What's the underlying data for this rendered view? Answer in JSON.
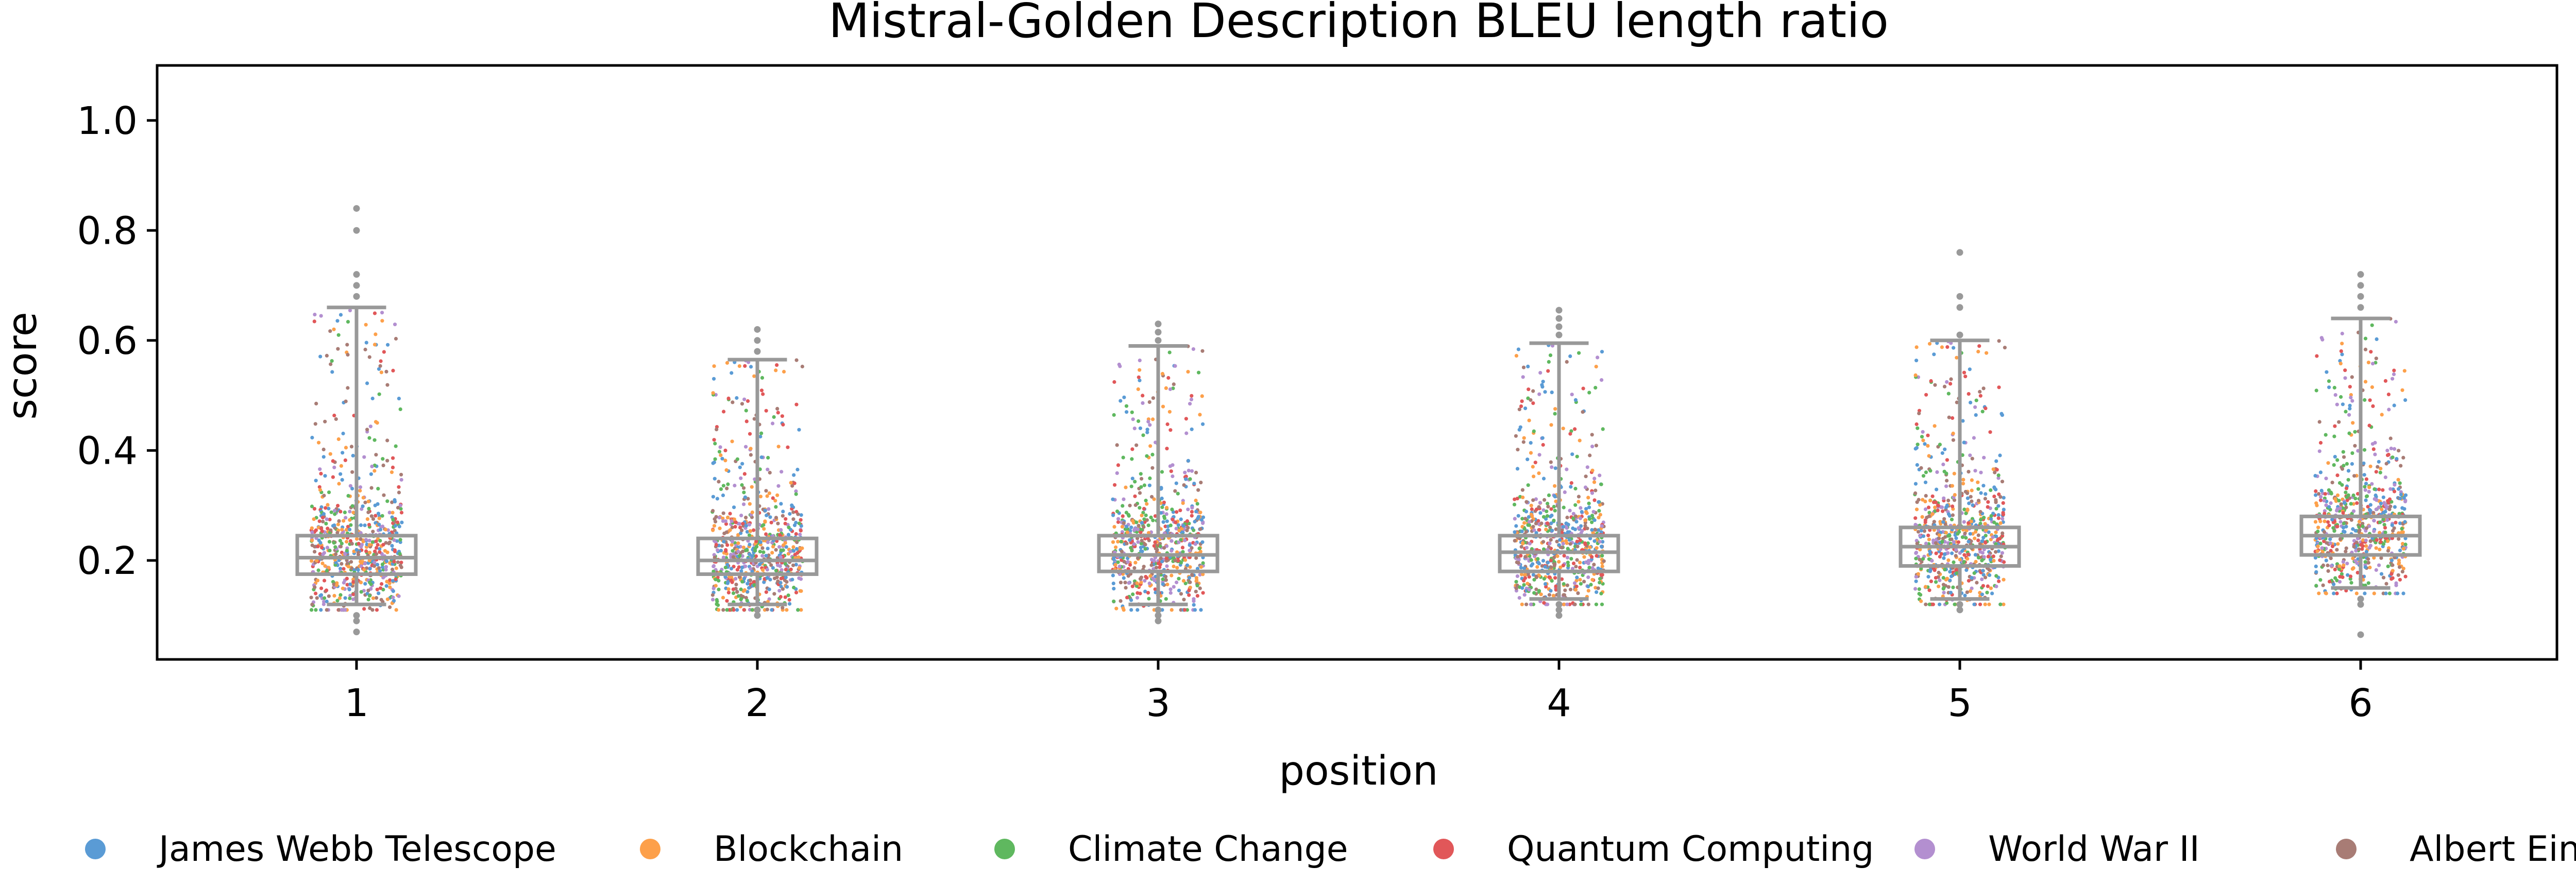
{
  "chart_data": {
    "type": "box-strip",
    "title": "Mistral-Golden Description BLEU length ratio",
    "xlabel": "position",
    "ylabel": "score",
    "categories": [
      "1",
      "2",
      "3",
      "4",
      "5",
      "6"
    ],
    "ylim": [
      0.02,
      1.1
    ],
    "yticks": [
      0.2,
      0.4,
      0.6,
      0.8,
      1.0
    ],
    "ytick_labels": [
      "0.2",
      "0.4",
      "0.6",
      "0.8",
      "1.0"
    ],
    "grid": false,
    "legend_position": "bottom",
    "box_color": "#999999",
    "boxes": [
      {
        "q1": 0.175,
        "median": 0.205,
        "q3": 0.245,
        "whisker_low": 0.12,
        "whisker_high": 0.66,
        "outliers_high": [
          0.68,
          0.7,
          0.72,
          0.8,
          0.84
        ],
        "outliers_low": [
          0.07,
          0.09,
          0.1
        ]
      },
      {
        "q1": 0.175,
        "median": 0.2,
        "q3": 0.24,
        "whisker_low": 0.12,
        "whisker_high": 0.565,
        "outliers_high": [
          0.58,
          0.6,
          0.62
        ],
        "outliers_low": [
          0.1,
          0.11
        ]
      },
      {
        "q1": 0.18,
        "median": 0.21,
        "q3": 0.245,
        "whisker_low": 0.12,
        "whisker_high": 0.59,
        "outliers_high": [
          0.6,
          0.615,
          0.63
        ],
        "outliers_low": [
          0.09,
          0.1,
          0.11
        ]
      },
      {
        "q1": 0.18,
        "median": 0.215,
        "q3": 0.245,
        "whisker_low": 0.13,
        "whisker_high": 0.595,
        "outliers_high": [
          0.61,
          0.625,
          0.64,
          0.655
        ],
        "outliers_low": [
          0.1,
          0.11,
          0.12
        ]
      },
      {
        "q1": 0.19,
        "median": 0.225,
        "q3": 0.26,
        "whisker_low": 0.13,
        "whisker_high": 0.6,
        "outliers_high": [
          0.61,
          0.66,
          0.68,
          0.76
        ],
        "outliers_low": [
          0.11,
          0.12
        ]
      },
      {
        "q1": 0.21,
        "median": 0.245,
        "q3": 0.28,
        "whisker_low": 0.15,
        "whisker_high": 0.64,
        "outliers_high": [
          0.66,
          0.68,
          0.7,
          0.72
        ],
        "outliers_low": [
          0.065,
          0.12,
          0.13
        ]
      }
    ],
    "series": [
      {
        "name": "James Webb Telescope",
        "color": "#5a9bd5"
      },
      {
        "name": "Blockchain",
        "color": "#fda04a"
      },
      {
        "name": "Climate Change",
        "color": "#5fb85f"
      },
      {
        "name": "Quantum Computing",
        "color": "#e15759"
      },
      {
        "name": "World War II",
        "color": "#b38fd0"
      },
      {
        "name": "Albert Einstein",
        "color": "#a87c75"
      }
    ]
  }
}
